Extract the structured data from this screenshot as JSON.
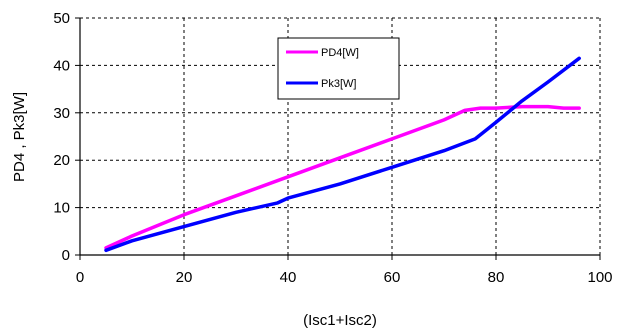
{
  "chart_data": {
    "type": "line",
    "title": "",
    "xlabel": "(Isc1+Isc2)",
    "ylabel": "PD4 , Pk3[W]",
    "xlim": [
      0,
      100
    ],
    "ylim": [
      0,
      50
    ],
    "x_ticks": [
      0,
      20,
      40,
      60,
      80,
      100
    ],
    "y_ticks": [
      0,
      10,
      20,
      30,
      40,
      50
    ],
    "x_tick_labels": [
      "0",
      "20",
      "40",
      "60",
      "80",
      "100"
    ],
    "y_tick_labels": [
      "0",
      "10",
      "20",
      "30",
      "40",
      "50"
    ],
    "grid": true,
    "grid_style": "dashed",
    "legend_position": "top-center",
    "series": [
      {
        "name": "PD4[W]",
        "color": "#ff00ff",
        "x": [
          5,
          10,
          20,
          30,
          40,
          50,
          60,
          65,
          70,
          74,
          77,
          80,
          85,
          90,
          93,
          96
        ],
        "y": [
          1.5,
          4,
          8.5,
          12.5,
          16.5,
          20.5,
          24.5,
          26.5,
          28.5,
          30.5,
          31,
          31,
          31.3,
          31.3,
          31,
          31
        ]
      },
      {
        "name": "Pk3[W]",
        "color": "#0000ff",
        "x": [
          5,
          10,
          20,
          30,
          38,
          40,
          50,
          60,
          70,
          76,
          80,
          85,
          90,
          96
        ],
        "y": [
          1,
          3,
          6,
          9,
          11,
          12,
          15,
          18.5,
          22,
          24.5,
          28,
          32.5,
          36.5,
          41.5
        ]
      }
    ]
  }
}
